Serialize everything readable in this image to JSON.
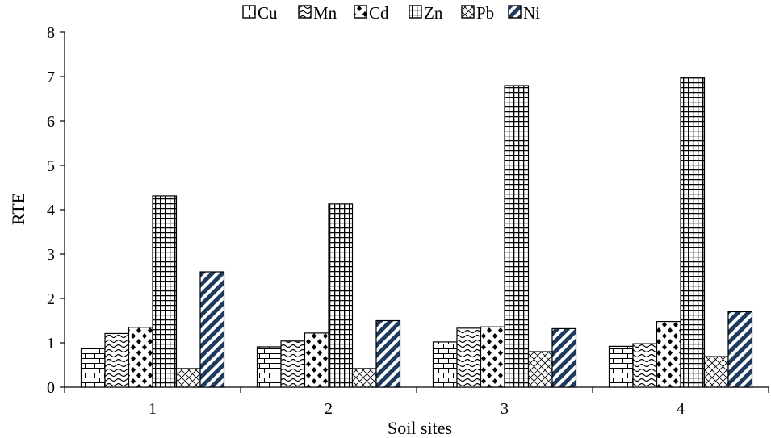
{
  "chart_data": {
    "type": "bar",
    "title": "",
    "xlabel": "Soil sites",
    "ylabel": "RTE",
    "ylim": [
      0,
      8
    ],
    "yticks": [
      "0",
      "1",
      "2",
      "3",
      "4",
      "5",
      "6",
      "7",
      "8"
    ],
    "categories": [
      "1",
      "2",
      "3",
      "4"
    ],
    "legend_position": "top",
    "grid": false,
    "series": [
      {
        "name": "Cu",
        "values": [
          0.87,
          0.91,
          1.02,
          0.92
        ],
        "pattern": "brick",
        "color": "#000000"
      },
      {
        "name": "Mn",
        "values": [
          1.21,
          1.04,
          1.33,
          0.98
        ],
        "pattern": "wave",
        "color": "#000000"
      },
      {
        "name": "Cd",
        "values": [
          1.35,
          1.22,
          1.36,
          1.48
        ],
        "pattern": "diamond-dots",
        "color": "#000000"
      },
      {
        "name": "Zn",
        "values": [
          4.31,
          4.13,
          6.8,
          6.97
        ],
        "pattern": "grid",
        "color": "#000000"
      },
      {
        "name": "Pb",
        "values": [
          0.42,
          0.42,
          0.8,
          0.69
        ],
        "pattern": "crosshatch",
        "color": "#000000"
      },
      {
        "name": "Ni",
        "values": [
          2.6,
          1.5,
          1.32,
          1.7
        ],
        "pattern": "diagonal-stripes",
        "color": "#1f3a5f"
      }
    ]
  }
}
